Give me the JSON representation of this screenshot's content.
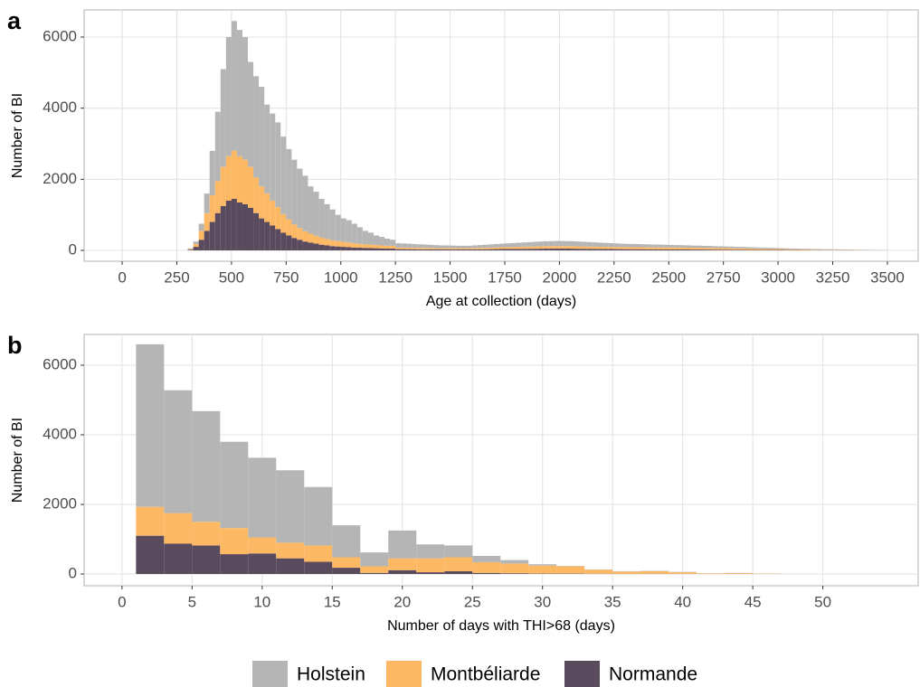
{
  "chart_data": [
    {
      "type": "histogram",
      "panel_label": "a",
      "x_label": "Age at collection (days)",
      "y_label": "Number of BI",
      "stacked": true,
      "grid": true,
      "legend": "bottom",
      "xlim": [
        -174,
        3641
      ],
      "ylim": [
        -305,
        6763
      ],
      "xticks": [
        0,
        250,
        500,
        750,
        1000,
        1250,
        1500,
        1750,
        2000,
        2250,
        2500,
        2750,
        3000,
        3250,
        3500
      ],
      "yticks": [
        0,
        2000,
        4000,
        6000
      ],
      "bins": [
        300,
        325,
        350,
        375,
        400,
        425,
        450,
        475,
        500,
        525,
        550,
        575,
        600,
        625,
        650,
        675,
        700,
        725,
        750,
        775,
        800,
        825,
        850,
        875,
        900,
        925,
        950,
        975,
        1000,
        1025,
        1050,
        1075,
        1100,
        1125,
        1150,
        1175,
        1200,
        1225,
        1250,
        1275,
        1300,
        1325,
        1350,
        1375,
        1400,
        1425,
        1450,
        1475,
        1500,
        1525,
        1550,
        1575,
        1600,
        1625,
        1650,
        1675,
        1700,
        1725,
        1750,
        1775,
        1800,
        1825,
        1850,
        1875,
        1900,
        1925,
        1950,
        1975,
        2000,
        2025,
        2050,
        2075,
        2100,
        2125,
        2150,
        2175,
        2200,
        2225,
        2250,
        2275,
        2300,
        2325,
        2350,
        2375,
        2400,
        2425,
        2450,
        2475,
        2500,
        2525,
        2550,
        2575,
        2600,
        2625,
        2650,
        2675,
        2700,
        2725,
        2750,
        2775,
        2800,
        2825,
        2850,
        2875,
        2900,
        2925,
        2950,
        2975,
        3000,
        3025,
        3050,
        3075,
        3100,
        3125,
        3150,
        3175,
        3200,
        3225,
        3250,
        3275,
        3300,
        3325,
        3350,
        3375,
        3400,
        3425,
        3450,
        3475,
        3500
      ],
      "series": [
        {
          "name": "Holstein",
          "color": "#b5b5b5",
          "values": [
            20,
            70,
            200,
            550,
            1250,
            1950,
            2750,
            3350,
            3650,
            3550,
            3450,
            2950,
            2850,
            2800,
            2500,
            2450,
            2380,
            2180,
            1980,
            1820,
            1670,
            1560,
            1330,
            1240,
            1090,
            980,
            870,
            740,
            660,
            630,
            550,
            465,
            380,
            340,
            270,
            240,
            200,
            170,
            120,
            115,
            110,
            105,
            100,
            95,
            90,
            85,
            80,
            80,
            75,
            70,
            70,
            70,
            75,
            80,
            85,
            90,
            95,
            100,
            105,
            110,
            115,
            120,
            125,
            130,
            135,
            140,
            140,
            145,
            145,
            140,
            140,
            135,
            130,
            125,
            120,
            115,
            110,
            105,
            100,
            95,
            92,
            90,
            88,
            85,
            82,
            80,
            78,
            75,
            72,
            70,
            68,
            65,
            62,
            60,
            58,
            55,
            52,
            50,
            48,
            46,
            44,
            42,
            40,
            38,
            36,
            34,
            32,
            30,
            28,
            26,
            24,
            22,
            20,
            18,
            17,
            16,
            15,
            14,
            13,
            12,
            11,
            10,
            9,
            8,
            7,
            6,
            5,
            4
          ]
        },
        {
          "name": "Montbéliarde",
          "color": "#fdb863",
          "values": [
            20,
            80,
            250,
            500,
            750,
            900,
            1100,
            1250,
            1350,
            1300,
            1250,
            1150,
            1000,
            900,
            800,
            700,
            620,
            520,
            450,
            380,
            330,
            290,
            250,
            220,
            200,
            180,
            160,
            150,
            140,
            130,
            120,
            110,
            100,
            95,
            90,
            85,
            80,
            80,
            45,
            45,
            45,
            42,
            40,
            40,
            38,
            36,
            35,
            35,
            35,
            35,
            35,
            36,
            38,
            40,
            42,
            45,
            48,
            50,
            52,
            55,
            58,
            60,
            62,
            64,
            66,
            68,
            70,
            70,
            70,
            70,
            70,
            68,
            66,
            65,
            64,
            62,
            60,
            60,
            60,
            60,
            58,
            58,
            58,
            56,
            56,
            55,
            55,
            54,
            54,
            53,
            52,
            52,
            50,
            50,
            48,
            48,
            46,
            45,
            44,
            42,
            40,
            38,
            36,
            34,
            32,
            30,
            28,
            26,
            24,
            22,
            20,
            18,
            16,
            15,
            14,
            13,
            12,
            11,
            10,
            9,
            8,
            7,
            6,
            5,
            5,
            4,
            3,
            3
          ]
        },
        {
          "name": "Normande",
          "color": "#5a4a5e",
          "values": [
            20,
            100,
            300,
            550,
            800,
            1050,
            1250,
            1400,
            1450,
            1350,
            1300,
            1200,
            1050,
            900,
            800,
            700,
            600,
            500,
            420,
            350,
            300,
            250,
            220,
            190,
            160,
            140,
            120,
            110,
            100,
            90,
            80,
            75,
            70,
            65,
            60,
            55,
            50,
            50,
            35,
            35,
            33,
            32,
            30,
            30,
            28,
            28,
            26,
            25,
            25,
            25,
            25,
            26,
            28,
            30,
            32,
            34,
            36,
            38,
            40,
            40,
            42,
            44,
            45,
            46,
            48,
            50,
            50,
            50,
            50,
            50,
            48,
            46,
            45,
            44,
            42,
            40,
            40,
            38,
            36,
            35,
            34,
            33,
            32,
            31,
            30,
            30,
            29,
            28,
            28,
            27,
            26,
            25,
            24,
            24,
            23,
            22,
            21,
            20,
            20,
            19,
            18,
            17,
            16,
            15,
            14,
            14,
            13,
            12,
            12,
            11,
            10,
            10,
            9,
            9,
            8,
            8,
            7,
            7,
            6,
            6,
            5,
            5,
            4,
            4,
            3,
            3,
            2,
            2
          ]
        }
      ]
    },
    {
      "type": "histogram",
      "panel_label": "b",
      "x_label": "Number of days with THI>68 (days)",
      "y_label": "Number of BI",
      "stacked": true,
      "grid": true,
      "xlim": [
        -2.7,
        56.8
      ],
      "ylim": [
        -338,
        6883
      ],
      "xticks": [
        0,
        5,
        10,
        15,
        20,
        25,
        30,
        35,
        40,
        45,
        50
      ],
      "yticks": [
        0,
        2000,
        4000,
        6000
      ],
      "bins": [
        1,
        3,
        5,
        7,
        9,
        11,
        13,
        15,
        17,
        19,
        21,
        23,
        25,
        27,
        29,
        31,
        33,
        35,
        37,
        39,
        41,
        43,
        45,
        47
      ],
      "series": [
        {
          "color": "#b5b5b5",
          "values": [
            4670,
            3530,
            3180,
            2480,
            2290,
            2080,
            1680,
            920,
            400,
            800,
            400,
            340,
            180,
            100,
            40,
            10,
            10,
            10,
            10,
            10,
            5,
            5,
            5
          ]
        },
        {
          "color": "#fdb863",
          "values": [
            830,
            880,
            680,
            750,
            460,
            450,
            470,
            300,
            190,
            340,
            400,
            400,
            310,
            280,
            230,
            210,
            115,
            65,
            75,
            45,
            15,
            20,
            10
          ]
        },
        {
          "color": "#5a4a5e",
          "values": [
            1100,
            870,
            820,
            570,
            590,
            450,
            350,
            180,
            30,
            110,
            50,
            80,
            30,
            20,
            10,
            10,
            5,
            5,
            5,
            5,
            0,
            5,
            0
          ]
        }
      ]
    }
  ]
}
